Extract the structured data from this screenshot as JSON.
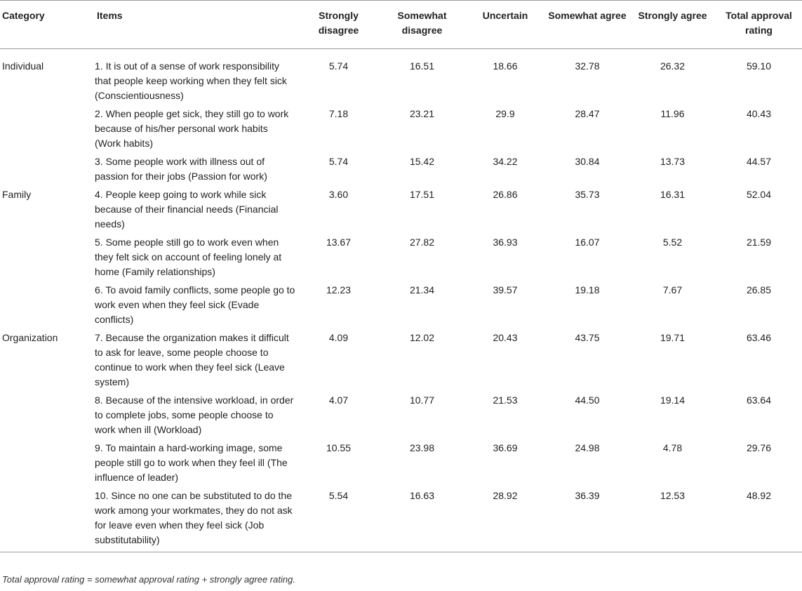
{
  "table": {
    "headers": {
      "category": "Category",
      "items": "Items",
      "strongly_disagree": "Strongly disagree",
      "somewhat_disagree": "Somewhat disagree",
      "uncertain": "Uncertain",
      "somewhat_agree": "Somewhat agree",
      "strongly_agree": "Strongly agree",
      "total_approval": "Total approval rating"
    },
    "rows": [
      {
        "category": "Individual",
        "item": "1. It is out of a sense of work responsibility that people keep working when they felt sick (Conscientiousness)",
        "sd": "5.74",
        "swd": "16.51",
        "unc": "18.66",
        "swa": "32.78",
        "sa": "26.32",
        "total": "59.10"
      },
      {
        "category": "",
        "item": "2. When people get sick, they still go to work because of his/her personal work habits (Work habits)",
        "sd": "7.18",
        "swd": "23.21",
        "unc": "29.9",
        "swa": "28.47",
        "sa": "11.96",
        "total": "40.43"
      },
      {
        "category": "",
        "item": "3. Some people work with illness out of passion for their jobs (Passion for work)",
        "sd": "5.74",
        "swd": "15.42",
        "unc": "34.22",
        "swa": "30.84",
        "sa": "13.73",
        "total": "44.57"
      },
      {
        "category": "Family",
        "item": "4. People keep going to work while sick because of their financial needs (Financial needs)",
        "sd": "3.60",
        "swd": "17.51",
        "unc": "26.86",
        "swa": "35.73",
        "sa": "16.31",
        "total": "52.04"
      },
      {
        "category": "",
        "item": "5. Some people still go to work even when they felt sick on account of feeling lonely at home (Family relationships)",
        "sd": "13.67",
        "swd": "27.82",
        "unc": "36.93",
        "swa": "16.07",
        "sa": "5.52",
        "total": "21.59"
      },
      {
        "category": "",
        "item": "6. To avoid family conflicts, some people go to work even when they feel sick (Evade conflicts)",
        "sd": "12.23",
        "swd": "21.34",
        "unc": "39.57",
        "swa": "19.18",
        "sa": "7.67",
        "total": "26.85"
      },
      {
        "category": "Organization",
        "item": "7. Because the organization makes it difficult to ask for leave, some people choose to continue to work when they feel sick (Leave system)",
        "sd": "4.09",
        "swd": "12.02",
        "unc": "20.43",
        "swa": "43.75",
        "sa": "19.71",
        "total": "63.46"
      },
      {
        "category": "",
        "item": "8. Because of the intensive workload, in order to complete jobs, some people choose to work when ill (Workload)",
        "sd": "4.07",
        "swd": "10.77",
        "unc": "21.53",
        "swa": "44.50",
        "sa": "19.14",
        "total": "63.64"
      },
      {
        "category": "",
        "item": "9. To maintain a hard-working image, some people still go to work when they feel ill (The influence of leader)",
        "sd": "10.55",
        "swd": "23.98",
        "unc": "36.69",
        "swa": "24.98",
        "sa": "4.78",
        "total": "29.76"
      },
      {
        "category": "",
        "item": "10. Since no one can be substituted to do the work among your workmates, they do not ask for leave even when they feel sick (Job substitutability)",
        "sd": "5.54",
        "swd": "16.63",
        "unc": "28.92",
        "swa": "36.39",
        "sa": "12.53",
        "total": "48.92"
      }
    ]
  },
  "footnote": "Total approval rating = somewhat approval rating + strongly agree rating."
}
